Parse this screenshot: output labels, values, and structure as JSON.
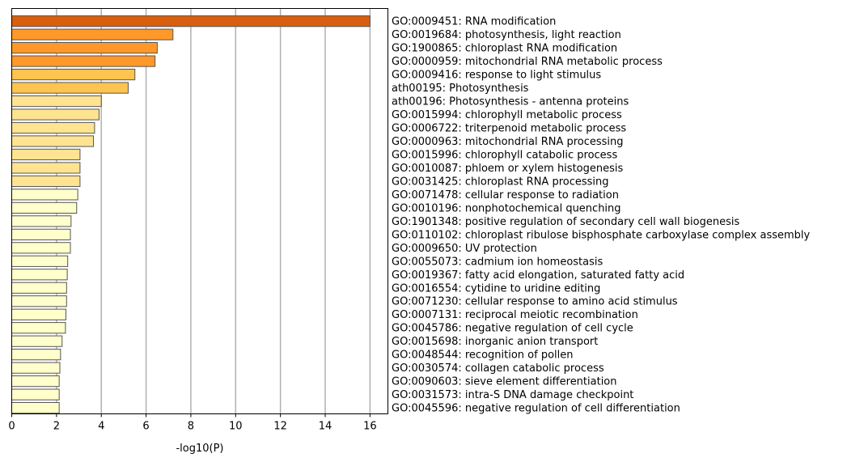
{
  "chart_data": {
    "type": "bar",
    "orientation": "horizontal",
    "xlabel": "-log10(P)",
    "xlim": [
      0,
      16.8
    ],
    "xticks": [
      0,
      2,
      4,
      6,
      8,
      10,
      12,
      14,
      16
    ],
    "grid": "vertical-major",
    "categories": [
      "GO:0009451: RNA modification",
      "GO:0019684: photosynthesis, light reaction",
      "GO:1900865: chloroplast RNA modification",
      "GO:0000959: mitochondrial RNA metabolic process",
      "GO:0009416: response to light stimulus",
      "ath00195: Photosynthesis",
      "ath00196: Photosynthesis - antenna proteins",
      "GO:0015994: chlorophyll metabolic process",
      "GO:0006722: triterpenoid metabolic process",
      "GO:0000963: mitochondrial RNA processing",
      "GO:0015996: chlorophyll catabolic process",
      "GO:0010087: phloem or xylem histogenesis",
      "GO:0031425: chloroplast RNA processing",
      "GO:0071478: cellular response to radiation",
      "GO:0010196: nonphotochemical quenching",
      "GO:1901348: positive regulation of secondary cell wall biogenesis",
      "GO:0110102: chloroplast ribulose bisphosphate carboxylase complex assembly",
      "GO:0009650: UV protection",
      "GO:0055073: cadmium ion homeostasis",
      "GO:0019367: fatty acid elongation, saturated fatty acid",
      "GO:0016554: cytidine to uridine editing",
      "GO:0071230: cellular response to amino acid stimulus",
      "GO:0007131: reciprocal meiotic recombination",
      "GO:0045786: negative regulation of cell cycle",
      "GO:0015698: inorganic anion transport",
      "GO:0048544: recognition of pollen",
      "GO:0030574: collagen catabolic process",
      "GO:0090603: sieve element differentiation",
      "GO:0031573: intra-S DNA damage checkpoint",
      "GO:0045596: negative regulation of cell differentiation"
    ],
    "values": [
      16.0,
      7.2,
      6.5,
      6.4,
      5.5,
      5.2,
      4.0,
      3.9,
      3.7,
      3.65,
      3.05,
      3.05,
      3.05,
      2.95,
      2.9,
      2.65,
      2.62,
      2.62,
      2.5,
      2.48,
      2.45,
      2.45,
      2.42,
      2.4,
      2.25,
      2.18,
      2.15,
      2.12,
      2.12,
      2.12
    ],
    "colors": [
      "#d95f0e",
      "#fe9929",
      "#fe9929",
      "#fe9929",
      "#fec44f",
      "#fec44f",
      "#fee391",
      "#fee391",
      "#fee391",
      "#fee391",
      "#fee391",
      "#fee391",
      "#fee391",
      "#ffffcc",
      "#ffffcc",
      "#ffffcc",
      "#ffffcc",
      "#ffffcc",
      "#ffffcc",
      "#ffffcc",
      "#ffffcc",
      "#ffffcc",
      "#ffffcc",
      "#ffffcc",
      "#ffffcc",
      "#ffffcc",
      "#ffffcc",
      "#ffffcc",
      "#ffffcc",
      "#ffffcc"
    ],
    "bar_edge_color": "#555555",
    "grid_color": "#b0b0b0"
  }
}
